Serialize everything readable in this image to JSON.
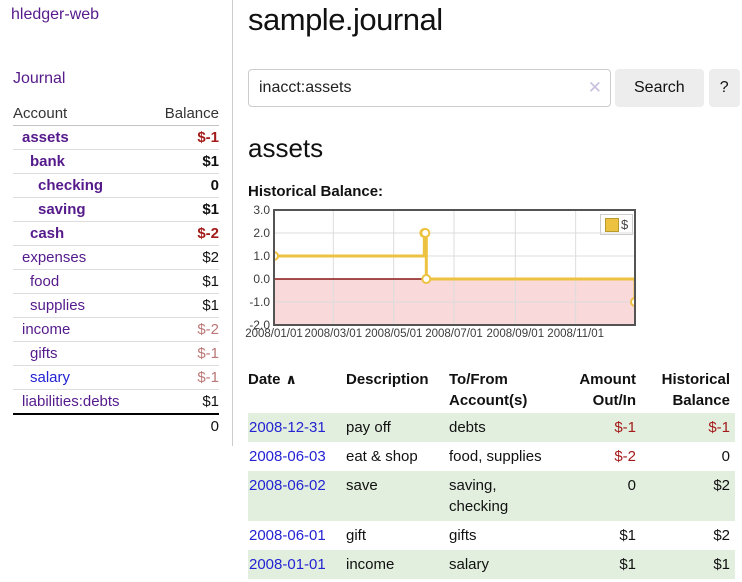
{
  "app": {
    "brand": "hledger-web"
  },
  "sidebar": {
    "journal_link": "Journal",
    "accounts": {
      "col_account": "Account",
      "col_balance": "Balance",
      "rows": [
        {
          "name": "assets",
          "indent": 1,
          "balance": "$-1",
          "in_query": true,
          "neg": "strong"
        },
        {
          "name": "bank",
          "indent": 2,
          "balance": "$1",
          "in_query": true
        },
        {
          "name": "checking",
          "indent": 3,
          "balance": "0",
          "in_query": true
        },
        {
          "name": "saving",
          "indent": 3,
          "balance": "$1",
          "in_query": true
        },
        {
          "name": "cash",
          "indent": 2,
          "balance": "$-2",
          "in_query": true,
          "neg": "strong"
        },
        {
          "name": "expenses",
          "indent": 1,
          "balance": "$2"
        },
        {
          "name": "food",
          "indent": 2,
          "balance": "$1"
        },
        {
          "name": "supplies",
          "indent": 2,
          "balance": "$1"
        },
        {
          "name": "income",
          "indent": 1,
          "balance": "$-2",
          "neg": "muted"
        },
        {
          "name": "gifts",
          "indent": 2,
          "balance": "$-1",
          "neg": "muted"
        },
        {
          "name": "salary",
          "indent": 2,
          "balance": "$-1",
          "neg": "muted",
          "unvisited": true
        },
        {
          "name": "liabilities:debts",
          "indent": 1,
          "balance": "$1"
        }
      ],
      "total": "0"
    }
  },
  "header": {
    "title": "sample.journal"
  },
  "search": {
    "value": "inacct:assets",
    "clear_icon": "✕",
    "search_button": "Search",
    "help_button": "?"
  },
  "account_page": {
    "heading": "assets",
    "chart_title": "Historical Balance:"
  },
  "chart_data": {
    "type": "line",
    "step": true,
    "title": "Historical Balance:",
    "legend": [
      {
        "label": "$",
        "color": "#edc240"
      }
    ],
    "legend_position": "top-right",
    "grid": true,
    "points": [
      {
        "date": "2008-01-01",
        "value": 1
      },
      {
        "date": "2008-06-01",
        "value": 2
      },
      {
        "date": "2008-06-02",
        "value": 2
      },
      {
        "date": "2008-06-03",
        "value": 0
      },
      {
        "date": "2008-12-31",
        "value": -1
      }
    ],
    "ylim": [
      -2,
      3
    ],
    "yticks": [
      3.0,
      2.0,
      1.0,
      0.0,
      -1.0,
      -2.0
    ],
    "x_range": [
      "2008-01-01",
      "2008-12-31"
    ],
    "xticks": [
      {
        "date": "2008-01-01",
        "label": "2008/01/01"
      },
      {
        "date": "2008-03-01",
        "label": "2008/03/01"
      },
      {
        "date": "2008-05-01",
        "label": "2008/05/01"
      },
      {
        "date": "2008-07-01",
        "label": "2008/07/01"
      },
      {
        "date": "2008-09-01",
        "label": "2008/09/01"
      },
      {
        "date": "2008-11-01",
        "label": "2008/11/01"
      }
    ],
    "series_color": "#edc240",
    "zero_line_color": "#8b1717",
    "negative_region_fill": "#f9d9d9"
  },
  "register": {
    "headers": {
      "date": "Date",
      "sort_indicator": "∧",
      "description": "Description",
      "tofrom": [
        "To/From",
        "Account(s)"
      ],
      "amount": [
        "Amount",
        "Out/In"
      ],
      "balance": [
        "Historical",
        "Balance"
      ]
    },
    "rows": [
      {
        "date": "2008-12-31",
        "description": "pay off",
        "accounts": "debts",
        "amount": "$-1",
        "balance": "$-1",
        "amount_neg": true,
        "balance_neg": true
      },
      {
        "date": "2008-06-03",
        "description": "eat & shop",
        "accounts": "food, supplies",
        "amount": "$-2",
        "balance": "0",
        "amount_neg": true
      },
      {
        "date": "2008-06-02",
        "description": "save",
        "accounts": "saving, checking",
        "amount": "0",
        "balance": "$2"
      },
      {
        "date": "2008-06-01",
        "description": "gift",
        "accounts": "gifts",
        "amount": "$1",
        "balance": "$2"
      },
      {
        "date": "2008-01-01",
        "description": "income",
        "accounts": "salary",
        "amount": "$1",
        "balance": "$1"
      }
    ]
  },
  "colors": {
    "link_purple": "#551a8b",
    "link_blue": "#2323d3",
    "negative_strong": "#a31b1b",
    "negative_muted": "#bb7777",
    "row_stripe_green": "#e2efde",
    "series_gold": "#edc240",
    "zero_line_red": "#8b1717",
    "negative_region_pink": "#f9d9d9",
    "plot_border": "#545454",
    "gridline": "#dcdcdc"
  }
}
